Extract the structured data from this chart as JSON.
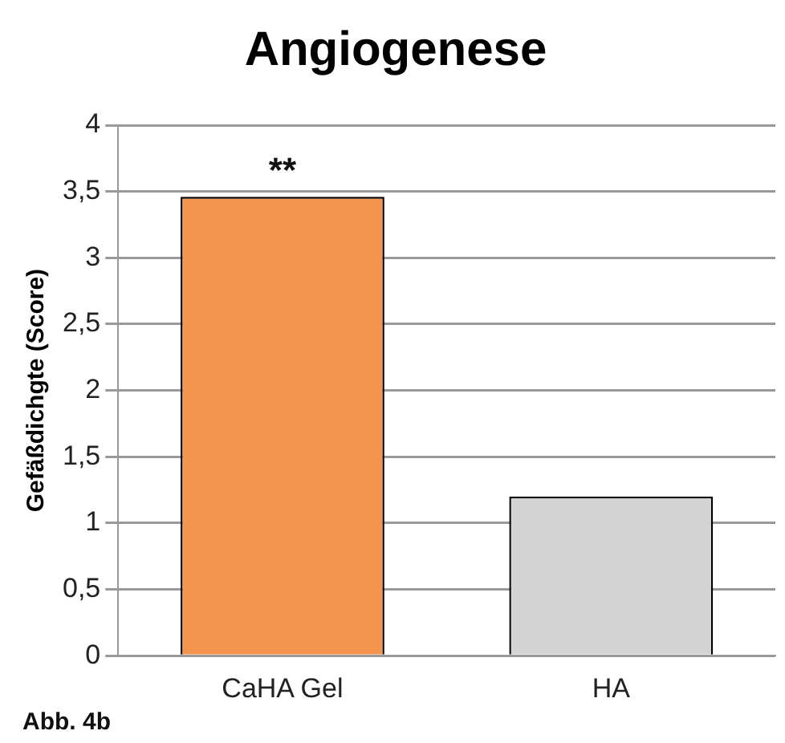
{
  "chart_data": {
    "type": "bar",
    "title": "Angiogenese",
    "ylabel": "Gefäßdichgte (Score)",
    "categories": [
      "CaHA Gel",
      "HA"
    ],
    "values": [
      3.46,
      1.2
    ],
    "colors": [
      "#f4954f",
      "#d3d3d3"
    ],
    "ylim": [
      0,
      4
    ],
    "yticks": [
      0,
      {
        "value": 0.5,
        "label": "0,5"
      },
      1,
      {
        "value": 1.5,
        "label": "1,5"
      },
      2,
      {
        "value": 2.5,
        "label": "2,5"
      },
      3,
      {
        "value": 3.5,
        "label": "3,5"
      },
      4
    ],
    "grid": "y",
    "legend": false,
    "annotations": [
      {
        "text": "**",
        "x": "CaHA Gel",
        "y": 3.46
      },
      "Abb. 4b"
    ]
  }
}
